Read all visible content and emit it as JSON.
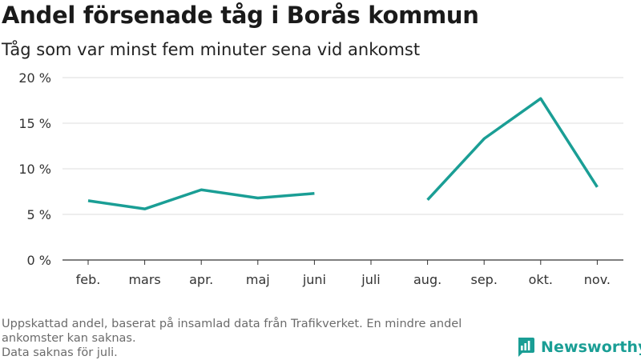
{
  "header": {
    "title": "Andel försenade tåg i Borås kommun",
    "subtitle": "Tåg som var minst fem minuter sena vid ankomst"
  },
  "footer": {
    "note_line1": "Uppskattad andel, baserat på insamlad data från Trafikverket. En mindre andel ankomster kan saknas.",
    "note_line2": "Data saknas för juli.",
    "brand": "Newsworthy",
    "brand_icon": "bar-chart-logo-icon"
  },
  "colors": {
    "line": "#1a9e95",
    "brand": "#1a9e95",
    "grid": "#dddddd",
    "axis": "#333333"
  },
  "chart_data": {
    "type": "line",
    "categories": [
      "feb.",
      "mars",
      "apr.",
      "maj",
      "juni",
      "juli",
      "aug.",
      "sep.",
      "okt.",
      "nov."
    ],
    "series": [
      {
        "values": [
          6.5,
          5.6,
          7.7,
          6.8,
          7.3,
          null,
          6.6,
          13.3,
          17.7,
          8.0
        ]
      }
    ],
    "y_ticks": [
      {
        "value": 0,
        "label": "0 %"
      },
      {
        "value": 5,
        "label": "5 %"
      },
      {
        "value": 10,
        "label": "10 %"
      },
      {
        "value": 15,
        "label": "15 %"
      },
      {
        "value": 20,
        "label": "20 %"
      }
    ],
    "ylim": [
      0,
      20
    ],
    "grid": true,
    "legend": "none"
  }
}
